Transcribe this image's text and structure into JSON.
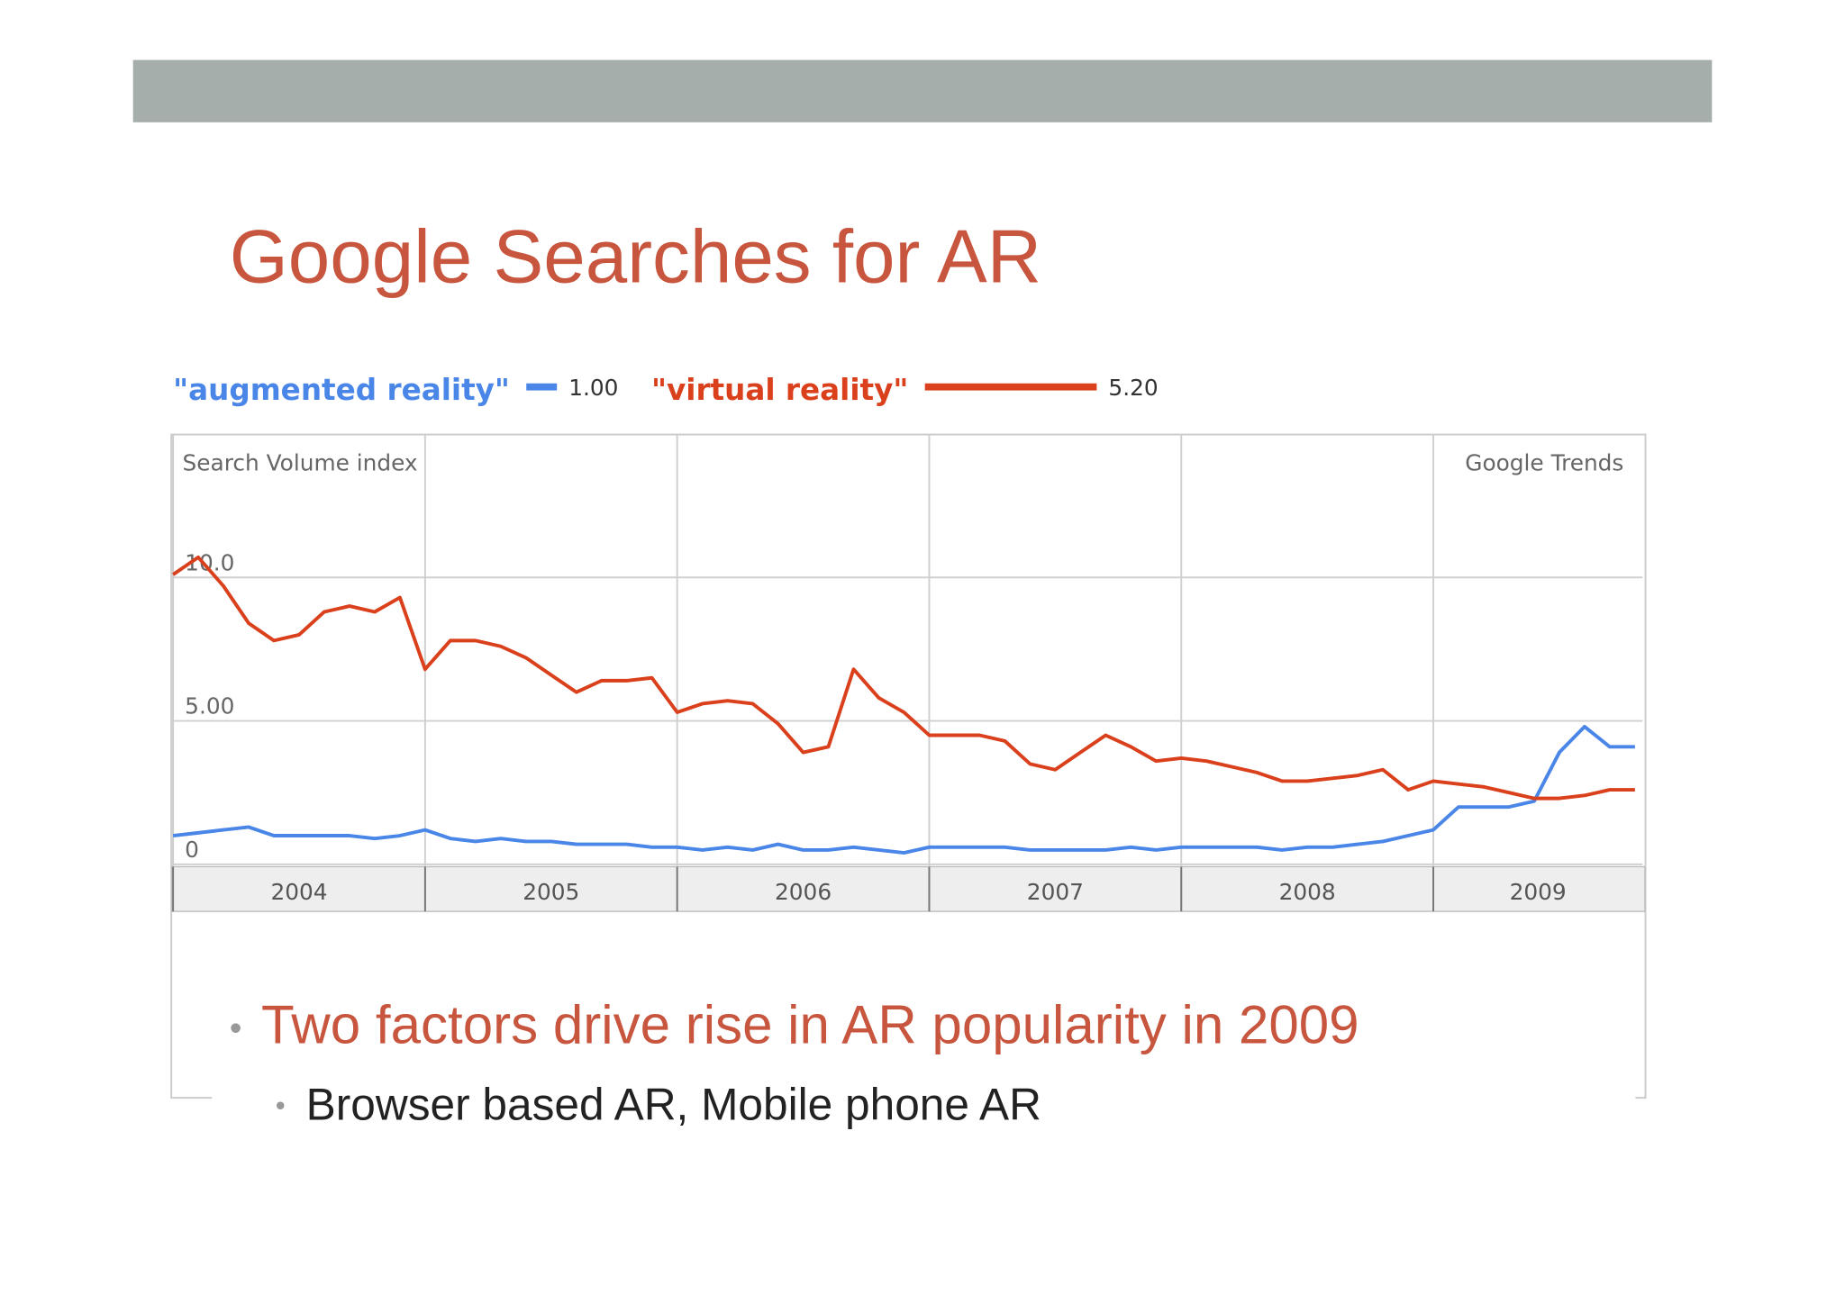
{
  "slide_title": "Google Searches for AR",
  "bullets": [
    "Two factors drive rise in AR popularity in 2009",
    "Browser based AR, Mobile phone AR"
  ],
  "chart_data": {
    "type": "line",
    "y_axis_label": "Search Volume index",
    "source_label": "Google Trends",
    "x": [
      2004,
      2004.1,
      2004.2,
      2004.3,
      2004.4,
      2004.5,
      2004.6,
      2004.7,
      2004.8,
      2004.9,
      2005,
      2005.1,
      2005.2,
      2005.3,
      2005.4,
      2005.5,
      2005.6,
      2005.7,
      2005.8,
      2005.9,
      2006,
      2006.1,
      2006.2,
      2006.3,
      2006.4,
      2006.5,
      2006.6,
      2006.7,
      2006.8,
      2006.9,
      2007,
      2007.1,
      2007.2,
      2007.3,
      2007.4,
      2007.5,
      2007.6,
      2007.7,
      2007.8,
      2007.9,
      2008,
      2008.1,
      2008.2,
      2008.3,
      2008.4,
      2008.5,
      2008.6,
      2008.7,
      2008.8,
      2008.9,
      2009,
      2009.1,
      2009.2,
      2009.3,
      2009.4,
      2009.5,
      2009.6,
      2009.7,
      2009.8
    ],
    "series": [
      {
        "name": "\"augmented reality\"",
        "average_label": "1.00",
        "color": "#4a86e8",
        "values": [
          1.0,
          1.1,
          1.2,
          1.3,
          1.0,
          1.0,
          1.0,
          1.0,
          0.9,
          1.0,
          1.2,
          0.9,
          0.8,
          0.9,
          0.8,
          0.8,
          0.7,
          0.7,
          0.7,
          0.6,
          0.6,
          0.5,
          0.6,
          0.5,
          0.7,
          0.5,
          0.5,
          0.6,
          0.5,
          0.4,
          0.6,
          0.6,
          0.6,
          0.6,
          0.5,
          0.5,
          0.5,
          0.5,
          0.6,
          0.5,
          0.6,
          0.6,
          0.6,
          0.6,
          0.5,
          0.6,
          0.6,
          0.7,
          0.8,
          1.0,
          1.2,
          2.0,
          2.0,
          2.0,
          2.2,
          3.9,
          4.8,
          4.1,
          4.1
        ]
      },
      {
        "name": "\"virtual reality\"",
        "average_label": "5.20",
        "color": "#d9401b",
        "values": [
          10.1,
          10.7,
          9.7,
          8.4,
          7.8,
          8.0,
          8.8,
          9.0,
          8.8,
          9.3,
          6.8,
          7.8,
          7.8,
          7.6,
          7.2,
          6.6,
          6.0,
          6.4,
          6.4,
          6.5,
          5.3,
          5.6,
          5.7,
          5.6,
          4.9,
          3.9,
          4.1,
          6.8,
          5.8,
          5.3,
          4.5,
          4.5,
          4.5,
          4.3,
          3.5,
          3.3,
          3.9,
          4.5,
          4.1,
          3.6,
          3.7,
          3.6,
          3.4,
          3.2,
          2.9,
          2.9,
          3.0,
          3.1,
          3.3,
          2.6,
          2.9,
          2.8,
          2.7,
          2.5,
          2.3,
          2.3,
          2.4,
          2.6,
          2.6
        ]
      }
    ],
    "xlim": [
      2004,
      2009.83
    ],
    "xticks": [
      2004,
      2005,
      2006,
      2007,
      2008,
      2009
    ],
    "ylim": [
      0,
      15
    ],
    "yticks": [
      {
        "value": 0,
        "label": "0"
      },
      {
        "value": 5,
        "label": "5.00"
      },
      {
        "value": 10,
        "label": "10.0"
      }
    ],
    "grid": true
  }
}
